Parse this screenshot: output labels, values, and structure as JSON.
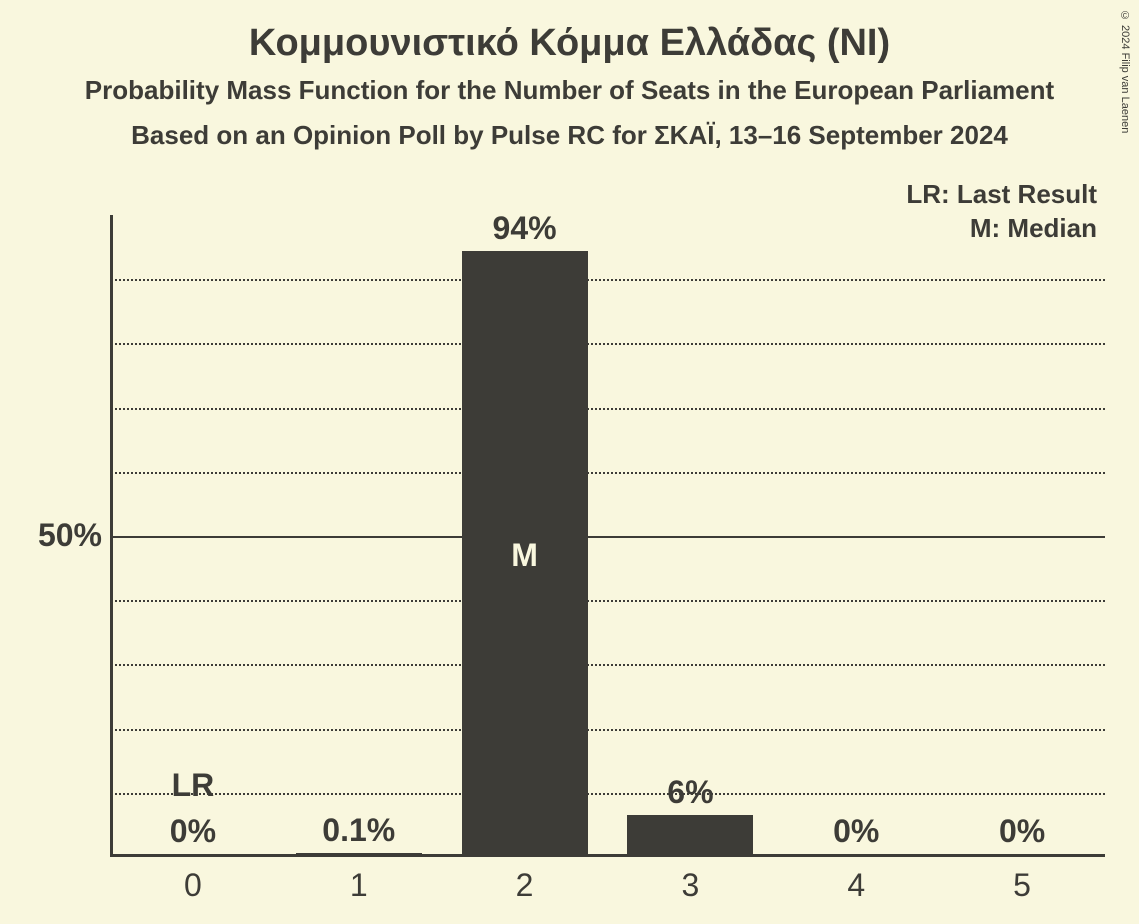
{
  "meta": {
    "copyright": "© 2024 Filip van Laenen"
  },
  "titles": {
    "main": "Κομμουνιστικό Κόμμα Ελλάδας (NI)",
    "sub1": "Probability Mass Function for the Number of Seats in the European Parliament",
    "sub2": "Based on an Opinion Poll by Pulse RC for ΣΚΑΪ, 13–16 September 2024"
  },
  "legend": {
    "lr": "LR: Last Result",
    "m": "M: Median"
  },
  "chart": {
    "type": "bar",
    "background": "#f9f7de",
    "bar_color": "#3d3c37",
    "text_color": "#3d3c37",
    "bar_inner_text_color": "#f9f7de",
    "grid_solid_color": "#3d3c37",
    "grid_dotted_color": "#3d3c37",
    "ylim": [
      0,
      100
    ],
    "ytick_major": 50,
    "ytick_minor": 10,
    "ylabel_50": "50%",
    "bar_width": 0.76,
    "categories": [
      "0",
      "1",
      "2",
      "3",
      "4",
      "5"
    ],
    "values": [
      0,
      0.1,
      94,
      6,
      0,
      0
    ],
    "value_labels": [
      "0%",
      "0.1%",
      "94%",
      "6%",
      "0%",
      "0%"
    ],
    "lr_index": 0,
    "lr_text": "LR",
    "median_index": 2,
    "median_text": "M"
  }
}
